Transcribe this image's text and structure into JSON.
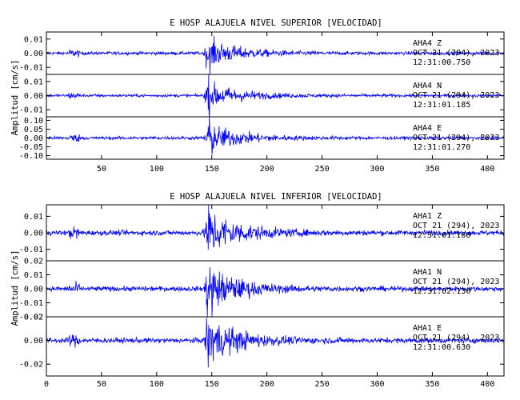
{
  "chart_data": [
    {
      "type": "line",
      "title": "E HOSP ALAJUELA NIVEL SUPERIOR [VELOCIDAD]",
      "ylabel": "Amplitud [cm/s]",
      "xlabel": "",
      "xlim": [
        0,
        415
      ],
      "xticks": [
        "50",
        "100",
        "150",
        "200",
        "250",
        "300",
        "350",
        "400"
      ],
      "grid": false,
      "color": "#0000ff",
      "panels": [
        {
          "station": "AHA4",
          "component": "Z",
          "date": "OCT 21 (294), 2023",
          "time": "12:31:00.750",
          "ylim": [
            -0.015,
            0.015
          ],
          "yticks": [
            "0.01",
            "0.00",
            "-0.01"
          ],
          "peak_x": 148,
          "peak_amp": 0.011
        },
        {
          "station": "AHA4",
          "component": "N",
          "date": "OCT 21 (294), 2023",
          "time": "12:31:01.185",
          "ylim": [
            -0.015,
            0.015
          ],
          "yticks": [
            "0.01",
            "0.00",
            "-0.01"
          ],
          "peak_x": 148,
          "peak_amp": 0.01
        },
        {
          "station": "AHA4",
          "component": "E",
          "date": "OCT 21 (294), 2023",
          "time": "12:31:01.270",
          "ylim": [
            -0.12,
            0.12
          ],
          "yticks": [
            "0.10",
            "0.05",
            "0.00",
            "-0.05",
            "-0.10"
          ],
          "peak_x": 148,
          "peak_amp": 0.09
        }
      ]
    },
    {
      "type": "line",
      "title": "E HOSP ALAJUELA NIVEL INFERIOR [VELOCIDAD]",
      "ylabel": "Amplitud [cm/s]",
      "xlabel": "",
      "xlim": [
        0,
        415
      ],
      "xticks": [
        "0",
        "50",
        "100",
        "150",
        "200",
        "250",
        "300",
        "350",
        "400"
      ],
      "grid": false,
      "color": "#0000ff",
      "panels": [
        {
          "station": "AHA1",
          "component": "Z",
          "date": "OCT 21 (294), 2023",
          "time": "12:31:01.160",
          "ylim": [
            -0.017,
            0.017
          ],
          "yticks": [
            "0.01",
            "0.00",
            "-0.01"
          ],
          "peak_x": 148,
          "peak_amp": 0.015
        },
        {
          "station": "AHA1",
          "component": "N",
          "date": "OCT 21 (294), 2023",
          "time": "12:31:02.130",
          "ylim": [
            -0.02,
            0.02
          ],
          "yticks": [
            "0.02",
            "0.01",
            "0.00",
            "-0.01",
            "-0.02"
          ],
          "peak_x": 148,
          "peak_amp": 0.017
        },
        {
          "station": "AHA1",
          "component": "E",
          "date": "OCT 21 (294), 2023",
          "time": "12:31:00.630",
          "ylim": [
            -0.03,
            0.02
          ],
          "yticks": [
            "0.02",
            "0.00",
            "-0.02"
          ],
          "peak_x": 148,
          "peak_amp": 0.021
        }
      ]
    }
  ]
}
